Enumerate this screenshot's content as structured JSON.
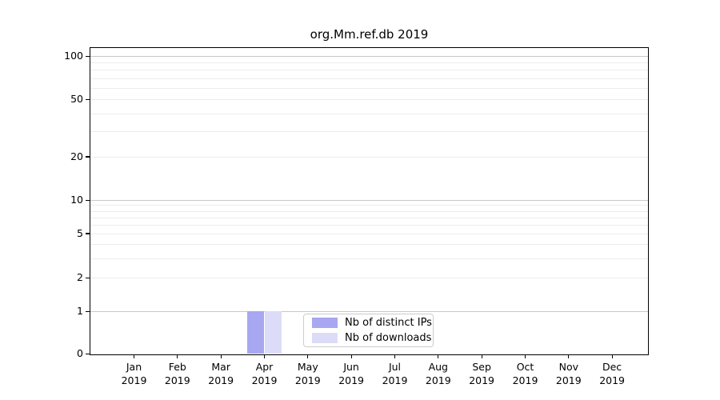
{
  "figure": {
    "title": "org.Mm.ref.db 2019"
  },
  "chart_data": {
    "type": "bar",
    "title": "org.Mm.ref.db 2019",
    "categories": [
      "Jan 2019",
      "Feb 2019",
      "Mar 2019",
      "Apr 2019",
      "May 2019",
      "Jun 2019",
      "Jul 2019",
      "Aug 2019",
      "Sep 2019",
      "Oct 2019",
      "Nov 2019",
      "Dec 2019"
    ],
    "series": [
      {
        "name": "Nb of distinct IPs",
        "color": "#a7a7f2",
        "values": [
          0,
          0,
          0,
          1,
          0,
          0,
          0,
          0,
          0,
          0,
          0,
          0
        ]
      },
      {
        "name": "Nb of downloads",
        "color": "#dcdcf9",
        "values": [
          0,
          0,
          0,
          1,
          0,
          0,
          0,
          0,
          0,
          0,
          0,
          0
        ]
      }
    ],
    "y_axis": {
      "scale": "symlog",
      "tick_values": [
        0,
        1,
        2,
        5,
        10,
        20,
        50,
        100
      ],
      "tick_labels": [
        "0",
        "1",
        "2",
        "5",
        "10",
        "20",
        "50",
        "100"
      ],
      "minor_gridline_values": [
        3,
        4,
        6,
        7,
        8,
        9,
        30,
        40,
        60,
        70,
        80,
        90
      ],
      "major_gridline_values": [
        1,
        10,
        100
      ],
      "range": [
        0,
        120
      ]
    },
    "x_axis": {
      "tick_count": 12
    },
    "grid": "horizontal",
    "legend_position": "lower center",
    "colors": {
      "major_gridline": "#c9c9c9",
      "minor_gridline": "#ececec",
      "axis": "#000000"
    }
  },
  "legend": {
    "items": [
      {
        "label": "Nb of distinct IPs",
        "color": "#a7a7f2"
      },
      {
        "label": "Nb of downloads",
        "color": "#dcdcf9"
      }
    ]
  }
}
